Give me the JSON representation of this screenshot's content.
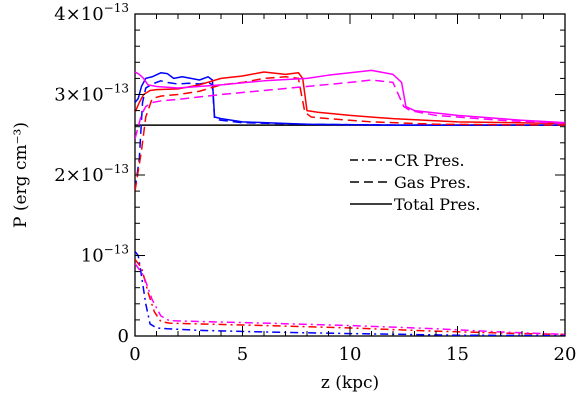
{
  "chart_data": {
    "type": "line",
    "xlabel": "z (kpc)",
    "ylabel": "P (erg cm⁻³)",
    "xlim": [
      0,
      20
    ],
    "ylim": [
      0,
      4e-13
    ],
    "x_ticks": [
      {
        "value": 0,
        "label": "0"
      },
      {
        "value": 5,
        "label": "5"
      },
      {
        "value": 10,
        "label": "10"
      },
      {
        "value": 15,
        "label": "15"
      },
      {
        "value": 20,
        "label": "20"
      }
    ],
    "y_ticks": [
      {
        "value": 0,
        "label": "0",
        "mantissa": "",
        "exponent": ""
      },
      {
        "value": 1e-13,
        "label": "10⁻¹³",
        "mantissa": "",
        "exponent": "−13"
      },
      {
        "value": 2e-13,
        "label": "2×10⁻¹³",
        "mantissa": "2",
        "exponent": "−13"
      },
      {
        "value": 3e-13,
        "label": "3×10⁻¹³",
        "mantissa": "3",
        "exponent": "−13"
      },
      {
        "value": 4e-13,
        "label": "4×10⁻¹³",
        "mantissa": "4",
        "exponent": "−13"
      }
    ],
    "legend": [
      {
        "label": "CR Pres.",
        "dash": "dashdot"
      },
      {
        "label": "Gas Pres.",
        "dash": "dashed"
      },
      {
        "label": "Total Pres.",
        "dash": "solid"
      }
    ],
    "legend_position": "right, upper-middle",
    "series": [
      {
        "color": "#000000",
        "dash": "solid",
        "x": [
          0,
          20
        ],
        "y": [
          2.62e-13,
          2.62e-13
        ]
      },
      {
        "color": "#0000ff",
        "dash": "solid",
        "x": [
          0,
          0.15,
          0.3,
          0.5,
          0.8,
          1.2,
          1.5,
          1.8,
          2.2,
          2.6,
          3.0,
          3.4,
          3.6,
          3.7,
          4.0,
          5,
          8,
          12,
          20
        ],
        "y": [
          2.9e-13,
          2.95e-13,
          3.1e-13,
          3.2e-13,
          3.22e-13,
          3.27e-13,
          3.26e-13,
          3.2e-13,
          3.22e-13,
          3.2e-13,
          3.18e-13,
          3.22e-13,
          3.18e-13,
          2.72e-13,
          2.7e-13,
          2.66e-13,
          2.63e-13,
          2.62e-13,
          2.62e-13
        ]
      },
      {
        "color": "#0000ff",
        "dash": "dashed",
        "x": [
          0,
          0.2,
          0.35,
          0.5,
          0.8,
          1.2,
          1.5,
          2.0,
          2.5,
          3.0,
          3.4,
          3.6,
          3.7,
          4.0,
          5,
          8,
          12,
          20
        ],
        "y": [
          1.82e-13,
          2.2e-13,
          2.9e-13,
          3.08e-13,
          3.13e-13,
          3.17e-13,
          3.15e-13,
          3.13e-13,
          3.14e-13,
          3.13e-13,
          3.15e-13,
          3.12e-13,
          2.7e-13,
          2.68e-13,
          2.65e-13,
          2.63e-13,
          2.62e-13,
          2.62e-13
        ]
      },
      {
        "color": "#0000ff",
        "dash": "dashdot",
        "x": [
          0,
          0.15,
          0.3,
          0.5,
          0.7,
          1.0,
          1.5,
          3,
          6,
          10,
          15,
          20
        ],
        "y": [
          1.05e-13,
          1e-13,
          7.5e-14,
          4e-14,
          1.5e-14,
          1e-14,
          9e-15,
          7e-15,
          5e-15,
          3e-15,
          1e-15,
          5e-16
        ]
      },
      {
        "color": "#ff0000",
        "dash": "solid",
        "x": [
          0,
          0.2,
          0.4,
          0.7,
          1.0,
          2,
          3,
          4,
          5,
          6,
          7,
          7.6,
          7.8,
          8.0,
          8.5,
          10,
          12,
          15,
          20
        ],
        "y": [
          2.78e-13,
          2.9e-13,
          3e-13,
          3.05e-13,
          3.06e-13,
          3.07e-13,
          3.12e-13,
          3.2e-13,
          3.23e-13,
          3.28e-13,
          3.25e-13,
          3.27e-13,
          3.2e-13,
          2.8e-13,
          2.78e-13,
          2.74e-13,
          2.7e-13,
          2.66e-13,
          2.64e-13
        ]
      },
      {
        "color": "#ff0000",
        "dash": "dashed",
        "x": [
          0,
          0.3,
          0.5,
          0.8,
          1.2,
          2,
          3,
          4,
          5,
          6,
          7,
          7.6,
          7.9,
          8.2,
          9,
          11,
          14,
          20
        ],
        "y": [
          1.8e-13,
          2.3e-13,
          2.72e-13,
          2.95e-13,
          2.98e-13,
          3e-13,
          3.04e-13,
          3.12e-13,
          3.15e-13,
          3.2e-13,
          3.22e-13,
          3.2e-13,
          2.78e-13,
          2.72e-13,
          2.7e-13,
          2.66e-13,
          2.63e-13,
          2.62e-13
        ]
      },
      {
        "color": "#ff0000",
        "dash": "dashdot",
        "x": [
          0,
          0.3,
          0.6,
          0.9,
          1.2,
          1.6,
          3,
          6,
          10,
          14,
          18,
          20
        ],
        "y": [
          9.5e-14,
          8.5e-14,
          5.5e-14,
          3e-14,
          1.8e-14,
          1.6e-14,
          1.5e-14,
          1.3e-14,
          1e-14,
          6e-15,
          3e-15,
          2e-15
        ]
      },
      {
        "color": "#ff00ff",
        "dash": "solid",
        "x": [
          0,
          0.2,
          0.4,
          0.6,
          1.0,
          2,
          4,
          6,
          8,
          9,
          10,
          11,
          12,
          12.4,
          12.6,
          13,
          15,
          18,
          20
        ],
        "y": [
          3.28e-13,
          3.25e-13,
          3.2e-13,
          3.12e-13,
          3.1e-13,
          3.08e-13,
          3.12e-13,
          3.17e-13,
          3.2e-13,
          3.24e-13,
          3.27e-13,
          3.3e-13,
          3.25e-13,
          3.15e-13,
          2.85e-13,
          2.8e-13,
          2.74e-13,
          2.68e-13,
          2.65e-13
        ]
      },
      {
        "color": "#ff00ff",
        "dash": "dashed",
        "x": [
          0,
          0.3,
          0.5,
          0.8,
          1.2,
          2,
          4,
          6,
          8,
          10,
          11,
          12,
          12.5,
          12.8,
          14,
          17,
          20
        ],
        "y": [
          2.45e-13,
          2.75e-13,
          2.85e-13,
          2.9e-13,
          2.92e-13,
          2.94e-13,
          3e-13,
          3.05e-13,
          3.1e-13,
          3.15e-13,
          3.18e-13,
          3.15e-13,
          2.85e-13,
          2.8e-13,
          2.74e-13,
          2.68e-13,
          2.64e-13
        ]
      },
      {
        "color": "#ff00ff",
        "dash": "dashdot",
        "x": [
          0,
          0.4,
          0.8,
          1.2,
          1.6,
          3,
          6,
          10,
          14,
          17,
          20
        ],
        "y": [
          9e-14,
          7.5e-14,
          4.5e-14,
          2.5e-14,
          1.9e-14,
          1.8e-14,
          1.6e-14,
          1.3e-14,
          9e-15,
          5e-15,
          2e-15
        ]
      }
    ]
  }
}
